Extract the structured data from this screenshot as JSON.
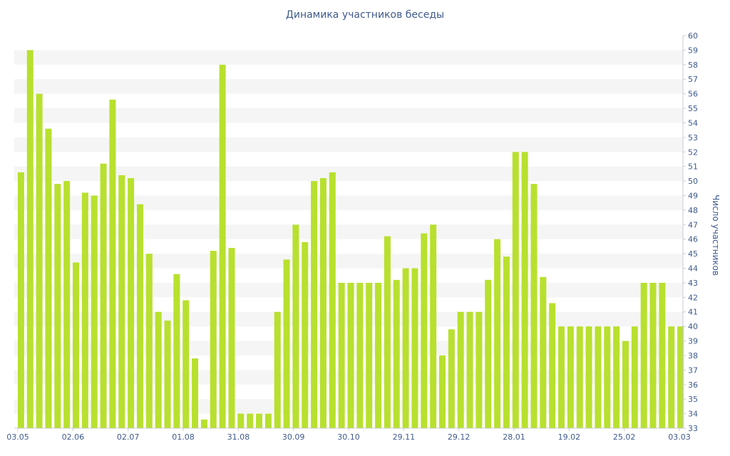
{
  "chart_data": {
    "type": "bar",
    "title": "Динамика участников беседы",
    "xlabel": "",
    "ylabel": "Число участников",
    "ylim": [
      33,
      60
    ],
    "y_axis_side": "right",
    "grid": "alternating horizontal bands",
    "bar_color": "#b8e02e",
    "band_color": "#f5f5f5",
    "text_color": "#3f5a8c",
    "x_tick_labels": [
      "03.05",
      "02.06",
      "02.07",
      "01.08",
      "31.08",
      "30.09",
      "30.10",
      "29.11",
      "29.12",
      "28.01",
      "19.02",
      "25.02",
      "03.03"
    ],
    "values": [
      50.6,
      59,
      56,
      53.6,
      49.8,
      50,
      44.4,
      49.2,
      49,
      51.2,
      55.6,
      50.4,
      50.2,
      48.4,
      45,
      41,
      40.4,
      43.6,
      41.8,
      37.8,
      33.6,
      45.2,
      58,
      45.4,
      34,
      34,
      34,
      34,
      41,
      44.6,
      47,
      45.8,
      50,
      50.2,
      50.6,
      43,
      43,
      43,
      43,
      43,
      46.2,
      43.2,
      44,
      44,
      46.4,
      47,
      38,
      39.8,
      41,
      41,
      41,
      43.2,
      46,
      44.8,
      52,
      52,
      49.8,
      43.4,
      41.6,
      40,
      40,
      40,
      40,
      40,
      40,
      40,
      39,
      40,
      43,
      43,
      43,
      40,
      40
    ]
  }
}
